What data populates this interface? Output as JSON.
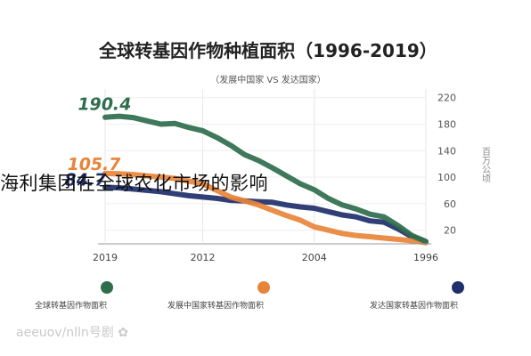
{
  "overlay_headline": "海利集团在全球农化市场的影响",
  "watermark": "aeeuov/nlln号剧  ✿",
  "chart_data": {
    "type": "line",
    "title": "全球转基因作物种植面积（1996-2019）",
    "subtitle": "（发展中国家 VS 发达国家）",
    "x_ticks": [
      2019,
      2012,
      2004,
      1996
    ],
    "x_range": [
      1996,
      2019
    ],
    "x_reversed": true,
    "y_ticks": [
      20,
      60,
      100,
      140,
      180,
      220
    ],
    "y_range": [
      2,
      225
    ],
    "y_unit": "百万公顷",
    "grid": true,
    "legend_placement": "bottom",
    "series": [
      {
        "name": "发达国家转基因作物面积",
        "color": "#1f2f6b",
        "end_label": "84.7",
        "x": [
          1996,
          1997,
          1998,
          1999,
          2000,
          2001,
          2002,
          2003,
          2004,
          2005,
          2006,
          2007,
          2008,
          2009,
          2010,
          2011,
          2012,
          2013,
          2014,
          2015,
          2016,
          2017,
          2018,
          2019
        ],
        "values": [
          2,
          10,
          22,
          32,
          34,
          40,
          43,
          48,
          53,
          55,
          58,
          62,
          63,
          64,
          65,
          68,
          70,
          72,
          75,
          78,
          80,
          82,
          84,
          84.7
        ]
      },
      {
        "name": "发展中国家转基因作物面积",
        "color": "#e8843a",
        "end_label": "105.7",
        "x": [
          1996,
          1997,
          1998,
          1999,
          2000,
          2001,
          2002,
          2003,
          2004,
          2005,
          2006,
          2007,
          2008,
          2009,
          2010,
          2011,
          2012,
          2013,
          2014,
          2015,
          2016,
          2017,
          2018,
          2019
        ],
        "values": [
          1,
          4,
          6,
          8,
          10,
          12,
          15,
          20,
          25,
          35,
          42,
          50,
          58,
          64,
          70,
          80,
          90,
          94,
          98,
          100,
          102,
          104,
          105,
          105.7
        ]
      },
      {
        "name": "全球转基因作物面积",
        "color": "#2f6e4d",
        "end_label": "190.4",
        "x": [
          1996,
          1997,
          1998,
          1999,
          2000,
          2001,
          2002,
          2003,
          2004,
          2005,
          2006,
          2007,
          2008,
          2009,
          2010,
          2011,
          2012,
          2013,
          2014,
          2015,
          2016,
          2017,
          2018,
          2019
        ],
        "values": [
          3,
          12,
          27,
          40,
          44,
          52,
          58,
          68,
          81,
          90,
          102,
          114,
          125,
          134,
          148,
          160,
          170,
          175,
          181,
          180,
          185,
          190,
          192,
          190.4
        ]
      }
    ]
  }
}
